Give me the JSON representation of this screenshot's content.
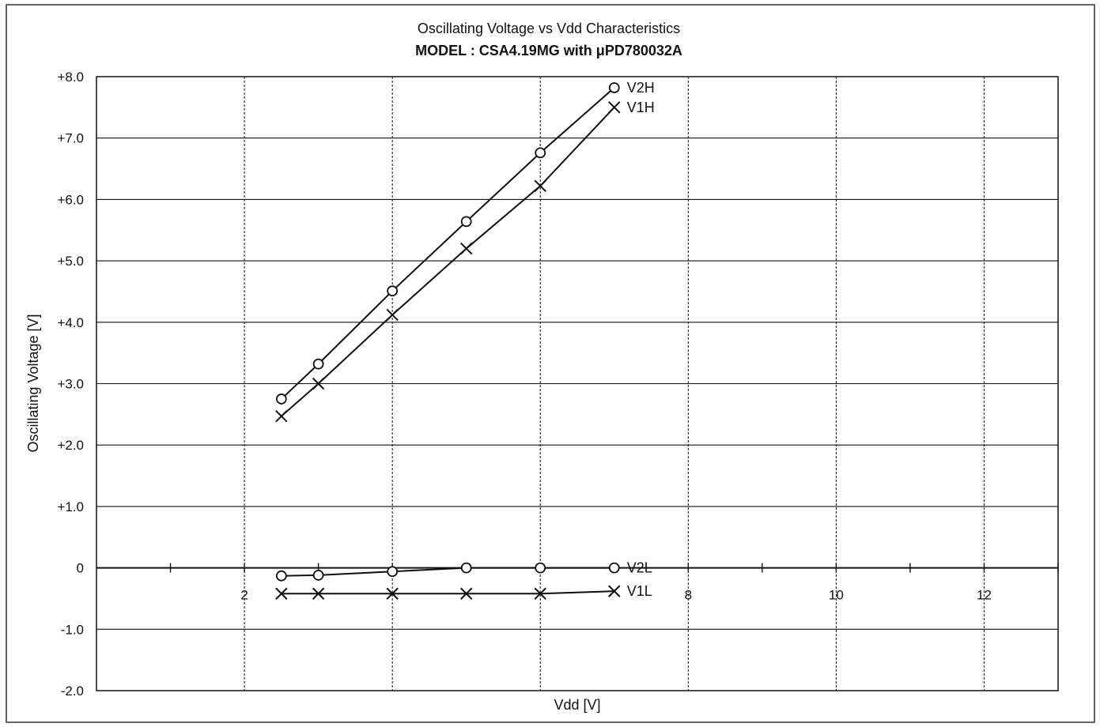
{
  "colors": {
    "line": "#111111",
    "grid": "#111111",
    "background": "#ffffff"
  },
  "chart_data": {
    "type": "line",
    "title": "Oscillating Voltage vs Vdd Characteristics",
    "subtitle": "MODEL : CSA4.19MG with μPD780032A",
    "xlabel": "Vdd [V]",
    "ylabel": "Oscillating Voltage [V]",
    "xlim": [
      0,
      13
    ],
    "ylim": [
      -2,
      8
    ],
    "grid": true,
    "legend": "series labels at line ends",
    "x_tick_labels": [
      {
        "value": 2,
        "label": "2"
      },
      {
        "value": 8,
        "label": "8"
      },
      {
        "value": 10,
        "label": "10"
      },
      {
        "value": 12,
        "label": "12"
      }
    ],
    "x_minor_ticks": [
      1,
      2,
      3,
      4,
      5,
      6,
      7,
      8,
      9,
      10,
      11,
      12,
      13
    ],
    "x_grid": [
      2,
      4,
      6,
      8,
      10,
      12
    ],
    "y_ticks": [
      {
        "value": 8,
        "label": "+8.0"
      },
      {
        "value": 7,
        "label": "+7.0"
      },
      {
        "value": 6,
        "label": "+6.0"
      },
      {
        "value": 5,
        "label": "+5.0"
      },
      {
        "value": 4,
        "label": "+4.0"
      },
      {
        "value": 3,
        "label": "+3.0"
      },
      {
        "value": 2,
        "label": "+2.0"
      },
      {
        "value": 1,
        "label": "+1.0"
      },
      {
        "value": 0,
        "label": "0"
      },
      {
        "value": -1,
        "label": "-1.0"
      },
      {
        "value": -2,
        "label": "-2.0"
      }
    ],
    "series": [
      {
        "name": "V2H",
        "marker": "circle",
        "x": [
          2.5,
          3.0,
          4.0,
          5.0,
          6.0,
          7.0
        ],
        "y": [
          2.75,
          3.32,
          4.51,
          5.64,
          6.76,
          7.82
        ]
      },
      {
        "name": "V1H",
        "marker": "cross",
        "x": [
          2.5,
          3.0,
          4.0,
          5.0,
          6.0,
          7.0
        ],
        "y": [
          2.47,
          3.0,
          4.12,
          5.2,
          6.22,
          7.5
        ]
      },
      {
        "name": "V2L",
        "marker": "circle",
        "x": [
          2.5,
          3.0,
          4.0,
          5.0,
          6.0,
          7.0
        ],
        "y": [
          -0.13,
          -0.12,
          -0.06,
          0.0,
          0.0,
          0.0
        ]
      },
      {
        "name": "V1L",
        "marker": "cross",
        "x": [
          2.5,
          3.0,
          4.0,
          5.0,
          6.0,
          7.0
        ],
        "y": [
          -0.42,
          -0.42,
          -0.42,
          -0.42,
          -0.42,
          -0.38
        ]
      }
    ]
  }
}
